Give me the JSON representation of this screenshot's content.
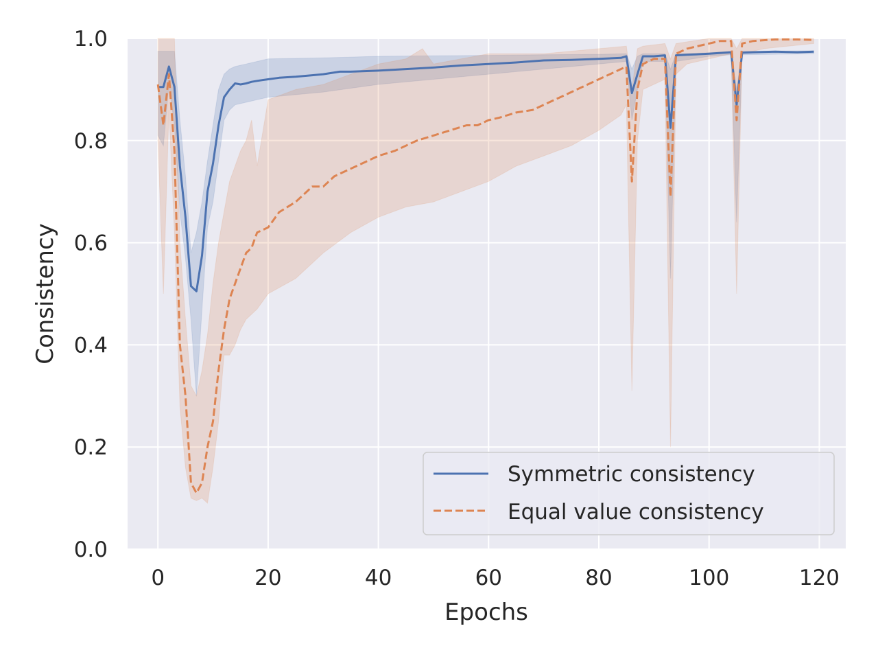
{
  "chart_data": {
    "type": "line",
    "title": "",
    "xlabel": "Epochs",
    "ylabel": "Consistency",
    "xlim": [
      -5.5,
      124.8
    ],
    "ylim": [
      0.0,
      1.0
    ],
    "xticks": [
      0,
      20,
      40,
      60,
      80,
      100,
      120
    ],
    "yticks": [
      0.0,
      0.2,
      0.4,
      0.6,
      0.8,
      1.0
    ],
    "xtick_labels": [
      "0",
      "20",
      "40",
      "60",
      "80",
      "100",
      "120"
    ],
    "ytick_labels": [
      "0.0",
      "0.2",
      "0.4",
      "0.6",
      "0.8",
      "1.0"
    ],
    "grid": true,
    "legend_position": "lower-right",
    "colors": {
      "background": "#eaeaf2",
      "grid": "#ffffff",
      "symmetric": "#4c72b0",
      "equal": "#dd8452"
    },
    "series": [
      {
        "name": "Symmetric consistency",
        "style": "solid",
        "color": "#4c72b0",
        "points": [
          [
            0,
            0.905
          ],
          [
            1,
            0.905
          ],
          [
            2,
            0.945
          ],
          [
            3,
            0.905
          ],
          [
            4,
            0.75
          ],
          [
            5,
            0.65
          ],
          [
            6,
            0.515
          ],
          [
            7,
            0.505
          ],
          [
            8,
            0.575
          ],
          [
            9,
            0.7
          ],
          [
            10,
            0.755
          ],
          [
            11,
            0.83
          ],
          [
            12,
            0.885
          ],
          [
            13,
            0.9
          ],
          [
            14,
            0.912
          ],
          [
            15,
            0.91
          ],
          [
            16,
            0.912
          ],
          [
            17,
            0.915
          ],
          [
            18,
            0.917
          ],
          [
            20,
            0.92
          ],
          [
            22,
            0.923
          ],
          [
            25,
            0.925
          ],
          [
            28,
            0.928
          ],
          [
            30,
            0.93
          ],
          [
            33,
            0.935
          ],
          [
            35,
            0.935
          ],
          [
            40,
            0.937
          ],
          [
            45,
            0.94
          ],
          [
            50,
            0.943
          ],
          [
            55,
            0.947
          ],
          [
            60,
            0.95
          ],
          [
            65,
            0.953
          ],
          [
            70,
            0.957
          ],
          [
            75,
            0.958
          ],
          [
            80,
            0.96
          ],
          [
            84,
            0.962
          ],
          [
            85,
            0.965
          ],
          [
            86,
            0.893
          ],
          [
            87,
            0.93
          ],
          [
            88,
            0.965
          ],
          [
            90,
            0.965
          ],
          [
            92,
            0.967
          ],
          [
            93,
            0.825
          ],
          [
            94,
            0.967
          ],
          [
            96,
            0.968
          ],
          [
            100,
            0.97
          ],
          [
            104,
            0.973
          ],
          [
            105,
            0.87
          ],
          [
            106,
            0.972
          ],
          [
            108,
            0.973
          ],
          [
            112,
            0.974
          ],
          [
            116,
            0.973
          ],
          [
            119,
            0.974
          ]
        ],
        "band_upper": [
          [
            0,
            0.975
          ],
          [
            1,
            0.975
          ],
          [
            2,
            0.975
          ],
          [
            3,
            0.975
          ],
          [
            4,
            0.84
          ],
          [
            5,
            0.73
          ],
          [
            6,
            0.58
          ],
          [
            7,
            0.62
          ],
          [
            8,
            0.68
          ],
          [
            9,
            0.76
          ],
          [
            10,
            0.83
          ],
          [
            11,
            0.9
          ],
          [
            12,
            0.93
          ],
          [
            13,
            0.94
          ],
          [
            14,
            0.945
          ],
          [
            16,
            0.95
          ],
          [
            18,
            0.955
          ],
          [
            20,
            0.96
          ],
          [
            30,
            0.962
          ],
          [
            40,
            0.965
          ],
          [
            50,
            0.966
          ],
          [
            60,
            0.967
          ],
          [
            70,
            0.968
          ],
          [
            80,
            0.969
          ],
          [
            85,
            0.97
          ],
          [
            86,
            0.94
          ],
          [
            87,
            0.965
          ],
          [
            88,
            0.97
          ],
          [
            92,
            0.97
          ],
          [
            93,
            0.94
          ],
          [
            94,
            0.97
          ],
          [
            100,
            0.972
          ],
          [
            104,
            0.975
          ],
          [
            105,
            0.9
          ],
          [
            106,
            0.975
          ],
          [
            119,
            0.976
          ]
        ],
        "band_lower": [
          [
            0,
            0.81
          ],
          [
            1,
            0.79
          ],
          [
            2,
            0.91
          ],
          [
            3,
            0.83
          ],
          [
            4,
            0.66
          ],
          [
            5,
            0.57
          ],
          [
            6,
            0.45
          ],
          [
            7,
            0.3
          ],
          [
            8,
            0.47
          ],
          [
            9,
            0.63
          ],
          [
            10,
            0.68
          ],
          [
            11,
            0.76
          ],
          [
            12,
            0.84
          ],
          [
            13,
            0.86
          ],
          [
            14,
            0.87
          ],
          [
            16,
            0.875
          ],
          [
            18,
            0.88
          ],
          [
            20,
            0.885
          ],
          [
            30,
            0.895
          ],
          [
            40,
            0.91
          ],
          [
            50,
            0.92
          ],
          [
            60,
            0.93
          ],
          [
            70,
            0.94
          ],
          [
            80,
            0.95
          ],
          [
            85,
            0.955
          ],
          [
            86,
            0.84
          ],
          [
            87,
            0.9
          ],
          [
            88,
            0.955
          ],
          [
            92,
            0.955
          ],
          [
            93,
            0.53
          ],
          [
            94,
            0.955
          ],
          [
            100,
            0.965
          ],
          [
            104,
            0.968
          ],
          [
            105,
            0.64
          ],
          [
            106,
            0.968
          ],
          [
            119,
            0.97
          ]
        ]
      },
      {
        "name": "Equal value consistency",
        "style": "dashed",
        "color": "#dd8452",
        "points": [
          [
            0,
            0.91
          ],
          [
            1,
            0.83
          ],
          [
            2,
            0.93
          ],
          [
            3,
            0.78
          ],
          [
            4,
            0.4
          ],
          [
            5,
            0.3
          ],
          [
            6,
            0.13
          ],
          [
            7,
            0.11
          ],
          [
            8,
            0.13
          ],
          [
            9,
            0.2
          ],
          [
            10,
            0.25
          ],
          [
            11,
            0.35
          ],
          [
            12,
            0.43
          ],
          [
            13,
            0.49
          ],
          [
            14,
            0.52
          ],
          [
            15,
            0.55
          ],
          [
            16,
            0.58
          ],
          [
            17,
            0.59
          ],
          [
            18,
            0.62
          ],
          [
            20,
            0.63
          ],
          [
            22,
            0.66
          ],
          [
            25,
            0.68
          ],
          [
            28,
            0.71
          ],
          [
            30,
            0.71
          ],
          [
            32,
            0.73
          ],
          [
            34,
            0.74
          ],
          [
            36,
            0.75
          ],
          [
            38,
            0.76
          ],
          [
            40,
            0.77
          ],
          [
            43,
            0.78
          ],
          [
            45,
            0.79
          ],
          [
            47,
            0.8
          ],
          [
            50,
            0.81
          ],
          [
            53,
            0.82
          ],
          [
            56,
            0.83
          ],
          [
            58,
            0.83
          ],
          [
            60,
            0.84
          ],
          [
            62,
            0.845
          ],
          [
            65,
            0.855
          ],
          [
            68,
            0.86
          ],
          [
            70,
            0.87
          ],
          [
            73,
            0.885
          ],
          [
            76,
            0.9
          ],
          [
            78,
            0.91
          ],
          [
            80,
            0.92
          ],
          [
            82,
            0.93
          ],
          [
            84,
            0.94
          ],
          [
            85,
            0.945
          ],
          [
            86,
            0.72
          ],
          [
            87,
            0.9
          ],
          [
            88,
            0.95
          ],
          [
            90,
            0.96
          ],
          [
            92,
            0.96
          ],
          [
            93,
            0.69
          ],
          [
            94,
            0.97
          ],
          [
            96,
            0.98
          ],
          [
            100,
            0.99
          ],
          [
            102,
            0.995
          ],
          [
            104,
            0.995
          ],
          [
            105,
            0.84
          ],
          [
            106,
            0.99
          ],
          [
            108,
            0.995
          ],
          [
            112,
            0.998
          ],
          [
            116,
            0.998
          ],
          [
            119,
            0.997
          ]
        ],
        "band_upper": [
          [
            0,
            1.0
          ],
          [
            1,
            1.0
          ],
          [
            2,
            1.0
          ],
          [
            3,
            1.0
          ],
          [
            4,
            0.6
          ],
          [
            5,
            0.45
          ],
          [
            6,
            0.32
          ],
          [
            7,
            0.3
          ],
          [
            8,
            0.35
          ],
          [
            9,
            0.42
          ],
          [
            10,
            0.52
          ],
          [
            11,
            0.6
          ],
          [
            12,
            0.66
          ],
          [
            13,
            0.72
          ],
          [
            14,
            0.75
          ],
          [
            15,
            0.78
          ],
          [
            16,
            0.8
          ],
          [
            17,
            0.84
          ],
          [
            18,
            0.75
          ],
          [
            20,
            0.88
          ],
          [
            25,
            0.9
          ],
          [
            30,
            0.91
          ],
          [
            35,
            0.93
          ],
          [
            40,
            0.95
          ],
          [
            45,
            0.96
          ],
          [
            48,
            0.98
          ],
          [
            50,
            0.95
          ],
          [
            55,
            0.96
          ],
          [
            60,
            0.97
          ],
          [
            70,
            0.97
          ],
          [
            80,
            0.98
          ],
          [
            85,
            0.985
          ],
          [
            86,
            0.9
          ],
          [
            87,
            0.98
          ],
          [
            88,
            0.985
          ],
          [
            92,
            0.99
          ],
          [
            93,
            0.96
          ],
          [
            94,
            0.99
          ],
          [
            100,
            1.0
          ],
          [
            104,
            1.0
          ],
          [
            105,
            0.98
          ],
          [
            106,
            1.0
          ],
          [
            119,
            1.0
          ]
        ],
        "band_lower": [
          [
            0,
            0.8
          ],
          [
            1,
            0.5
          ],
          [
            2,
            0.86
          ],
          [
            3,
            0.62
          ],
          [
            4,
            0.28
          ],
          [
            5,
            0.16
          ],
          [
            6,
            0.1
          ],
          [
            7,
            0.095
          ],
          [
            8,
            0.1
          ],
          [
            9,
            0.09
          ],
          [
            10,
            0.16
          ],
          [
            11,
            0.25
          ],
          [
            12,
            0.38
          ],
          [
            13,
            0.38
          ],
          [
            14,
            0.4
          ],
          [
            15,
            0.43
          ],
          [
            16,
            0.45
          ],
          [
            18,
            0.47
          ],
          [
            20,
            0.5
          ],
          [
            25,
            0.53
          ],
          [
            30,
            0.58
          ],
          [
            35,
            0.62
          ],
          [
            40,
            0.65
          ],
          [
            45,
            0.67
          ],
          [
            50,
            0.68
          ],
          [
            55,
            0.7
          ],
          [
            60,
            0.72
          ],
          [
            65,
            0.75
          ],
          [
            70,
            0.77
          ],
          [
            75,
            0.79
          ],
          [
            80,
            0.82
          ],
          [
            84,
            0.85
          ],
          [
            85,
            0.87
          ],
          [
            86,
            0.31
          ],
          [
            87,
            0.8
          ],
          [
            88,
            0.9
          ],
          [
            92,
            0.92
          ],
          [
            93,
            0.2
          ],
          [
            94,
            0.93
          ],
          [
            96,
            0.95
          ],
          [
            100,
            0.96
          ],
          [
            104,
            0.97
          ],
          [
            105,
            0.5
          ],
          [
            106,
            0.97
          ],
          [
            110,
            0.98
          ],
          [
            119,
            0.99
          ]
        ]
      }
    ]
  }
}
